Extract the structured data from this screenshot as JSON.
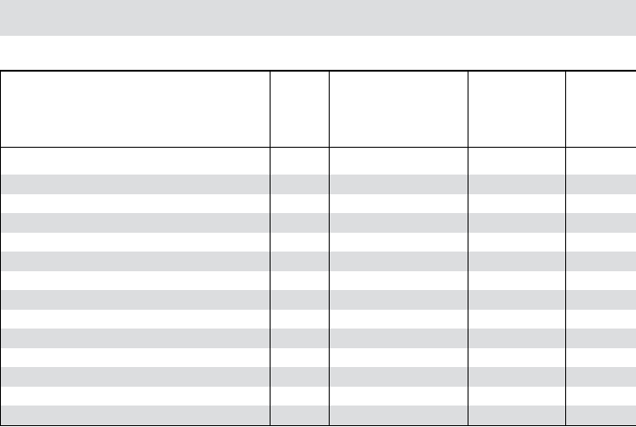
{
  "header": {
    "title": ""
  },
  "table": {
    "columns": [
      "",
      "",
      "",
      "",
      ""
    ],
    "rows": [
      [
        "",
        "",
        "",
        "",
        ""
      ],
      [
        "",
        "",
        "",
        "",
        ""
      ],
      [
        "",
        "",
        "",
        "",
        ""
      ],
      [
        "",
        "",
        "",
        "",
        ""
      ],
      [
        "",
        "",
        "",
        "",
        ""
      ],
      [
        "",
        "",
        "",
        "",
        ""
      ],
      [
        "",
        "",
        "",
        "",
        ""
      ],
      [
        "",
        "",
        "",
        "",
        ""
      ],
      [
        "",
        "",
        "",
        "",
        ""
      ],
      [
        "",
        "",
        "",
        "",
        ""
      ],
      [
        "",
        "",
        "",
        "",
        ""
      ],
      [
        "",
        "",
        "",
        "",
        ""
      ],
      [
        "",
        "",
        "",
        "",
        ""
      ],
      [
        "",
        "",
        "",
        "",
        ""
      ]
    ]
  },
  "colors": {
    "band": "#dcdddf",
    "stripe": "#dcdddf",
    "border": "#000000"
  }
}
